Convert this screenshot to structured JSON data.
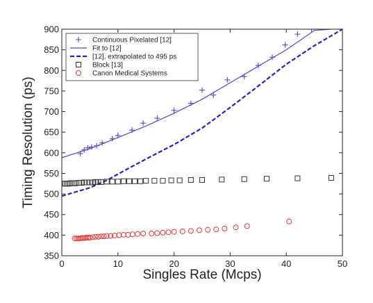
{
  "chart_data": {
    "type": "scatter",
    "xlabel": "Singles Rate  (Mcps)",
    "ylabel": "Timing Resolution  (ps)",
    "xlim": [
      0,
      50
    ],
    "ylim": [
      350,
      900
    ],
    "xticks": [
      "0",
      "10",
      "20",
      "30",
      "40",
      "50"
    ],
    "yticks": [
      "350",
      "400",
      "450",
      "500",
      "550",
      "600",
      "650",
      "700",
      "750",
      "800",
      "850",
      "900"
    ],
    "grid": false,
    "legend_position": "top-left",
    "series": [
      {
        "name": "Continuous Pixelated [12]",
        "kind": "marker",
        "marker": "plus",
        "color": "#5b45c9",
        "x": [
          3.3,
          4.0,
          4.6,
          5.3,
          6.2,
          7.2,
          9.0,
          10.0,
          12.5,
          14.5,
          17.0,
          20.0,
          23.0,
          25.0,
          27.0,
          29.5,
          32.5,
          35.0,
          37.5,
          39.8,
          42.0,
          44.5
        ],
        "y": [
          598,
          607,
          612,
          614,
          617,
          624,
          634,
          642,
          655,
          672,
          684,
          703,
          720,
          752,
          740,
          777,
          785,
          812,
          832,
          862,
          888,
          900
        ]
      },
      {
        "name": "Fit to [12]",
        "kind": "line",
        "style": "solid",
        "color": "#5b45c9",
        "x": [
          0,
          5,
          10,
          15,
          20,
          25,
          30,
          35,
          40,
          45,
          48
        ],
        "y": [
          588,
          610,
          637,
          665,
          696,
          730,
          770,
          810,
          850,
          897,
          900
        ]
      },
      {
        "name": "[12], extrapolated to 495 ps",
        "kind": "line",
        "style": "dashed",
        "color": "#2b20b8",
        "x": [
          0,
          2,
          5,
          8,
          12,
          16,
          20,
          25,
          30,
          35,
          40,
          45,
          50
        ],
        "y": [
          495,
          503,
          515,
          533,
          563,
          592,
          620,
          660,
          710,
          762,
          815,
          860,
          900
        ]
      },
      {
        "name": "Block [13]",
        "kind": "marker",
        "marker": "square",
        "color": "#333333",
        "x": [
          0.3,
          0.6,
          0.9,
          1.2,
          1.5,
          1.8,
          2.1,
          2.4,
          3.0,
          3.5,
          4.0,
          4.5,
          5.0,
          5.5,
          6.0,
          6.5,
          7.0,
          8.0,
          9.0,
          10.0,
          11.0,
          12.0,
          13.0,
          14.0,
          15.0,
          16.5,
          18.0,
          19.5,
          21.0,
          23.0,
          25.0,
          28.5,
          32.5,
          36.5,
          42.0,
          48.0
        ],
        "y": [
          525,
          525,
          525,
          525,
          526,
          526,
          526,
          526,
          527,
          527,
          528,
          528,
          528,
          528,
          529,
          529,
          529,
          530,
          530,
          530,
          531,
          531,
          531,
          531,
          532,
          532,
          532,
          533,
          533,
          534,
          534,
          535,
          536,
          537,
          538,
          539
        ]
      },
      {
        "name": "Canon Medical Systems",
        "kind": "marker",
        "marker": "circle",
        "color": "#e03a3a",
        "x": [
          2.3,
          2.6,
          2.9,
          3.2,
          3.5,
          3.8,
          4.1,
          4.4,
          4.7,
          5.0,
          5.5,
          6.0,
          6.5,
          7.0,
          7.5,
          8.0,
          8.7,
          9.4,
          10.2,
          11.0,
          11.8,
          12.6,
          13.5,
          14.5,
          16.0,
          17.0,
          18.0,
          19.0,
          20.0,
          21.5,
          23.0,
          24.5,
          26.0,
          27.5,
          29.0,
          31.0,
          33.0,
          40.5
        ],
        "y": [
          392,
          392,
          392,
          392,
          393,
          393,
          393,
          394,
          394,
          394,
          395,
          396,
          396,
          397,
          397,
          398,
          398,
          399,
          400,
          401,
          401,
          402,
          403,
          404,
          404,
          405,
          406,
          407,
          408,
          409,
          410,
          412,
          413,
          414,
          416,
          419,
          422,
          433
        ]
      }
    ]
  }
}
